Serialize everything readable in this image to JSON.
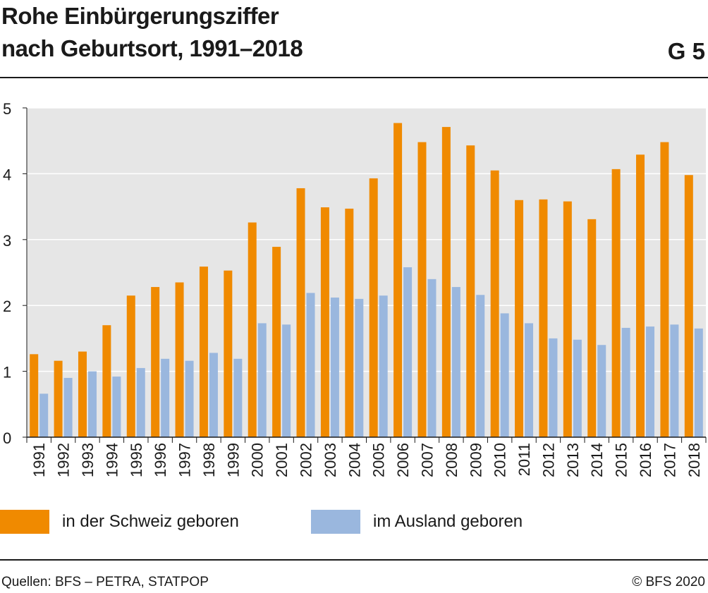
{
  "header": {
    "title_line1": "Rohe Einbürgerungsziffer",
    "title_line2": "nach Geburtsort, 1991–2018",
    "figure_id": "G 5"
  },
  "colors": {
    "schweiz": "#f08a00",
    "ausland": "#9ab7de",
    "plot_bg": "#e6e6e6",
    "grid": "#ffffff"
  },
  "chart_data": {
    "type": "bar",
    "title": "Rohe Einbürgerungsziffer nach Geburtsort, 1991–2018",
    "xlabel": "",
    "ylabel": "",
    "ylim": [
      0,
      5
    ],
    "yticks": [
      0,
      1,
      2,
      3,
      4,
      5
    ],
    "grid": true,
    "legend_position": "bottom",
    "categories": [
      "1991",
      "1992",
      "1993",
      "1994",
      "1995",
      "1996",
      "1997",
      "1998",
      "1999",
      "2000",
      "2001",
      "2002",
      "2003",
      "2004",
      "2005",
      "2006",
      "2007",
      "2008",
      "2009",
      "2010",
      "2011",
      "2012",
      "2013",
      "2014",
      "2015",
      "2016",
      "2017",
      "2018"
    ],
    "series": [
      {
        "name": "in der Schweiz geboren",
        "color": "#f08a00",
        "values": [
          1.26,
          1.16,
          1.3,
          1.7,
          2.15,
          2.28,
          2.35,
          2.59,
          2.53,
          3.26,
          2.89,
          3.78,
          3.49,
          3.47,
          3.93,
          4.77,
          4.48,
          4.71,
          4.43,
          4.05,
          3.6,
          3.61,
          3.58,
          3.31,
          4.07,
          4.29,
          4.48,
          3.98
        ]
      },
      {
        "name": "im Ausland geboren",
        "color": "#9ab7de",
        "values": [
          0.66,
          0.9,
          1.0,
          0.92,
          1.05,
          1.19,
          1.16,
          1.28,
          1.19,
          1.73,
          1.71,
          2.19,
          2.12,
          2.1,
          2.15,
          2.58,
          2.4,
          2.28,
          2.16,
          1.88,
          1.73,
          1.5,
          1.48,
          1.4,
          1.66,
          1.68,
          1.71,
          1.65
        ]
      }
    ]
  },
  "footer": {
    "source": "Quellen: BFS – PETRA, STATPOP",
    "copyright": "© BFS 2020"
  }
}
